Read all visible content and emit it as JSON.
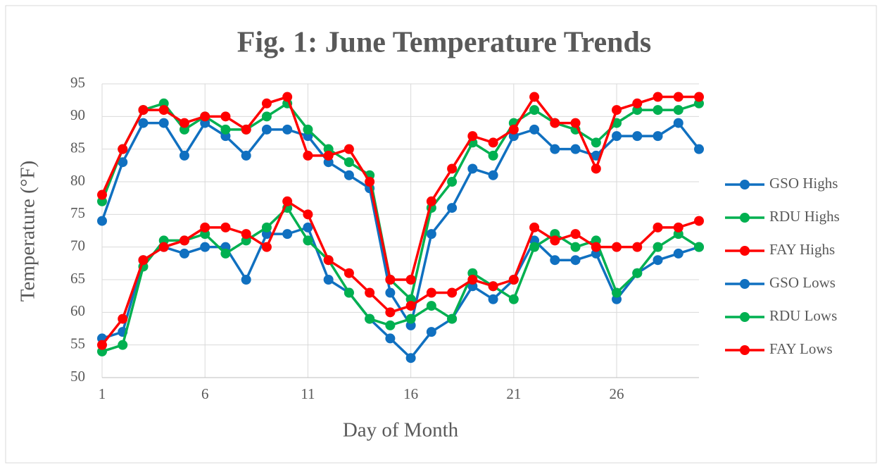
{
  "chart_data": {
    "type": "line",
    "title": "Fig. 1: June Temperature Trends",
    "x_label": "Day of Month",
    "y_label": "Temperature (°F)",
    "x": [
      1,
      2,
      3,
      4,
      5,
      6,
      7,
      8,
      9,
      10,
      11,
      12,
      13,
      14,
      15,
      16,
      17,
      18,
      19,
      20,
      21,
      22,
      23,
      24,
      25,
      26,
      27,
      28,
      29,
      30
    ],
    "xlim": [
      1,
      30
    ],
    "xticks": [
      1,
      6,
      11,
      16,
      21,
      26
    ],
    "ylim": [
      50,
      95
    ],
    "yticks": [
      50,
      55,
      60,
      65,
      70,
      75,
      80,
      85,
      90,
      95
    ],
    "grid": true,
    "legend": "right",
    "series": [
      {
        "name": "GSO Highs",
        "color": "#1070c0",
        "values": [
          74,
          83,
          89,
          89,
          84,
          89,
          87,
          84,
          88,
          88,
          87,
          83,
          81,
          79,
          63,
          58,
          72,
          76,
          82,
          81,
          87,
          88,
          85,
          85,
          84,
          87,
          87,
          87,
          89,
          85
        ]
      },
      {
        "name": "RDU Highs",
        "color": "#00b050",
        "values": [
          77,
          85,
          91,
          92,
          88,
          90,
          88,
          88,
          90,
          92,
          88,
          85,
          83,
          81,
          65,
          62,
          76,
          80,
          86,
          84,
          89,
          91,
          89,
          88,
          86,
          89,
          91,
          91,
          91,
          92
        ]
      },
      {
        "name": "FAY Highs",
        "color": "#ff0000",
        "values": [
          78,
          85,
          91,
          91,
          89,
          90,
          90,
          88,
          92,
          93,
          84,
          84,
          85,
          80,
          65,
          65,
          77,
          82,
          87,
          86,
          88,
          93,
          89,
          89,
          82,
          91,
          92,
          93,
          93,
          93
        ]
      },
      {
        "name": "GSO Lows",
        "color": "#1070c0",
        "values": [
          56,
          57,
          68,
          70,
          69,
          70,
          70,
          65,
          72,
          72,
          73,
          65,
          63,
          59,
          56,
          53,
          57,
          59,
          64,
          62,
          65,
          71,
          68,
          68,
          69,
          62,
          66,
          68,
          69,
          70
        ]
      },
      {
        "name": "RDU Lows",
        "color": "#00b050",
        "values": [
          54,
          55,
          67,
          71,
          71,
          72,
          69,
          71,
          73,
          76,
          71,
          68,
          63,
          59,
          58,
          59,
          61,
          59,
          66,
          64,
          62,
          70,
          72,
          70,
          71,
          63,
          66,
          70,
          72,
          70
        ]
      },
      {
        "name": "FAY Lows",
        "color": "#ff0000",
        "values": [
          55,
          59,
          68,
          70,
          71,
          73,
          73,
          72,
          70,
          77,
          75,
          68,
          66,
          63,
          60,
          61,
          63,
          63,
          65,
          64,
          65,
          73,
          71,
          72,
          70,
          70,
          70,
          73,
          73,
          74
        ]
      }
    ]
  }
}
